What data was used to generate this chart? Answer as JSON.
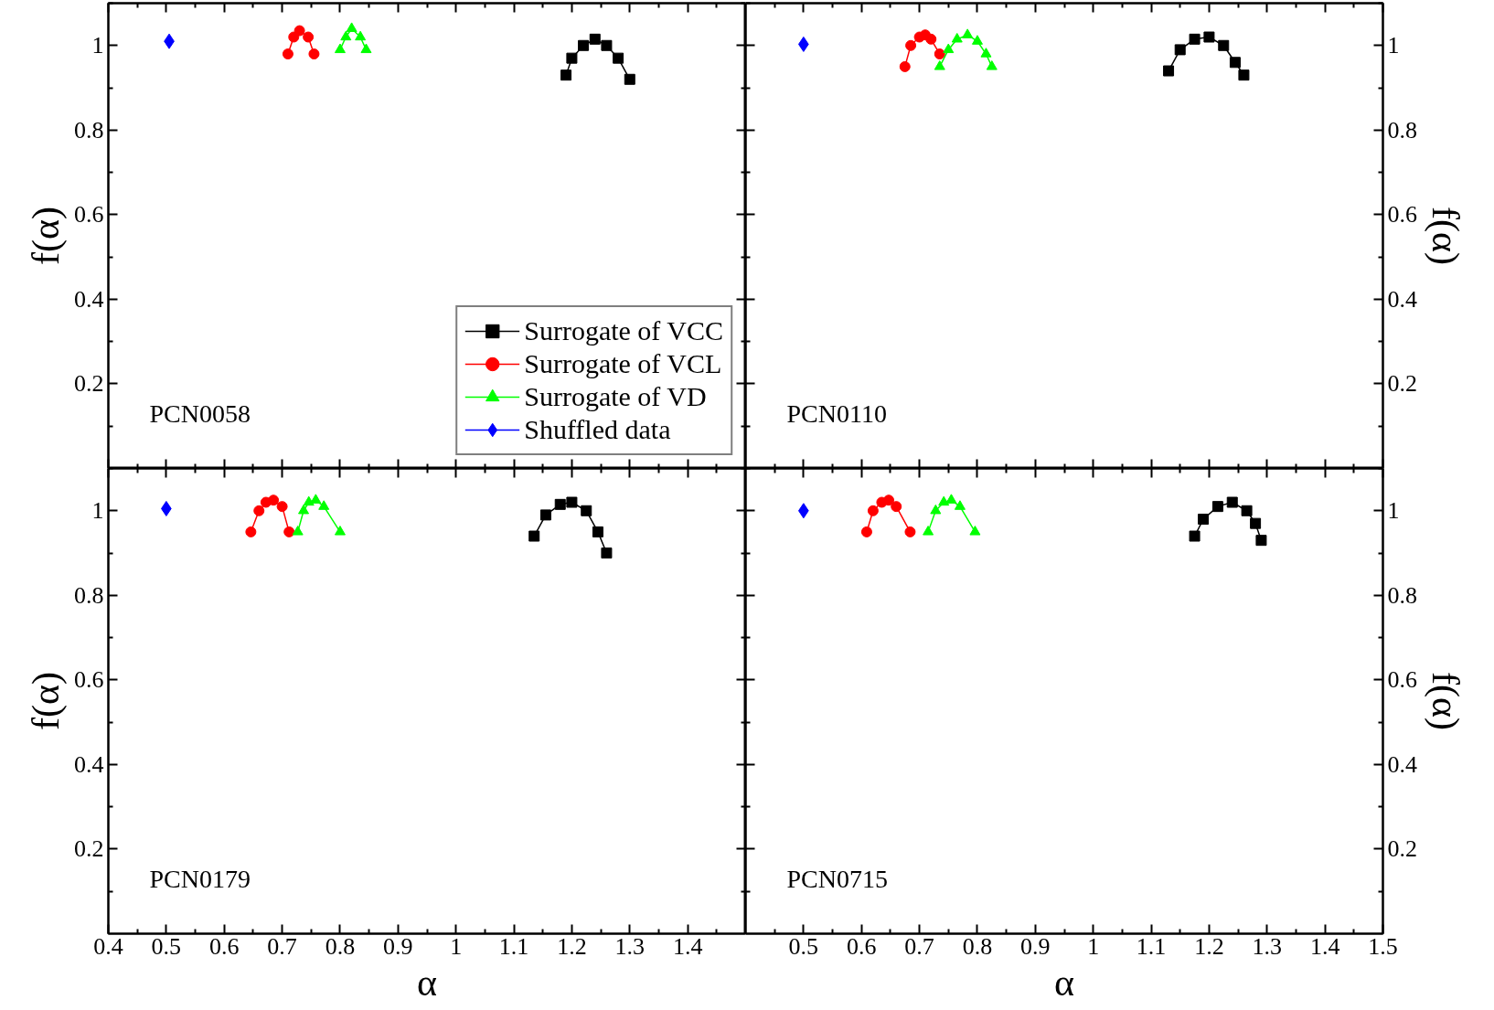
{
  "chart_data": [
    {
      "type": "line",
      "ylabel": "f(α)",
      "xlim": [
        0.4,
        1.5
      ],
      "ylim": [
        0,
        1.1
      ],
      "xticks": [
        0.4,
        0.5,
        0.6,
        0.7,
        0.8,
        0.9,
        1,
        1.1,
        1.2,
        1.3,
        1.4
      ],
      "yticks": [
        0.2,
        0.4,
        0.6,
        0.8,
        1
      ],
      "tick_labels": "y",
      "legend": "bottom right",
      "annotations": [
        "PCN0058"
      ],
      "series": [
        {
          "name": "Surrogate of VCC",
          "color": "#000000",
          "marker": "square",
          "x": [
            1.19,
            1.2,
            1.22,
            1.24,
            1.26,
            1.28,
            1.3
          ],
          "values": [
            0.93,
            0.97,
            1.0,
            1.015,
            1.0,
            0.97,
            0.92
          ]
        },
        {
          "name": "Surrogate of VCL",
          "color": "#ff0000",
          "marker": "circle",
          "x": [
            0.71,
            0.72,
            0.73,
            0.745,
            0.755
          ],
          "values": [
            0.98,
            1.02,
            1.035,
            1.02,
            0.98
          ]
        },
        {
          "name": "Surrogate of VD",
          "color": "#00ff00",
          "marker": "triangle",
          "x": [
            0.8,
            0.81,
            0.82,
            0.835,
            0.845
          ],
          "values": [
            0.99,
            1.02,
            1.04,
            1.02,
            0.99
          ]
        },
        {
          "name": "Shuffled data",
          "color": "#0000ff",
          "marker": "diamond",
          "x": [
            0.505
          ],
          "values": [
            1.01
          ]
        }
      ]
    },
    {
      "type": "line",
      "ylabel": "f(α)",
      "xlim": [
        0.4,
        1.5
      ],
      "ylim": [
        0,
        1.1
      ],
      "xticks": [
        0.5,
        0.6,
        0.7,
        0.8,
        0.9,
        1,
        1.1,
        1.2,
        1.3,
        1.4,
        1.5
      ],
      "yticks": [
        0.2,
        0.4,
        0.6,
        0.8,
        1
      ],
      "tick_labels": "y",
      "annotations": [
        "PCN0110"
      ],
      "series": [
        {
          "color": "#000000",
          "marker": "square",
          "x": [
            1.13,
            1.15,
            1.175,
            1.2,
            1.225,
            1.245,
            1.26
          ],
          "values": [
            0.94,
            0.99,
            1.015,
            1.02,
            1.0,
            0.96,
            0.93
          ]
        },
        {
          "color": "#ff0000",
          "marker": "circle",
          "x": [
            0.675,
            0.685,
            0.7,
            0.71,
            0.72,
            0.735
          ],
          "values": [
            0.95,
            1.0,
            1.02,
            1.025,
            1.015,
            0.98
          ]
        },
        {
          "color": "#00ff00",
          "marker": "triangle",
          "x": [
            0.735,
            0.75,
            0.765,
            0.783,
            0.8,
            0.815,
            0.825
          ],
          "values": [
            0.95,
            0.99,
            1.015,
            1.025,
            1.01,
            0.98,
            0.95
          ]
        },
        {
          "color": "#0000ff",
          "marker": "diamond",
          "x": [
            0.5
          ],
          "values": [
            1.003
          ]
        }
      ]
    },
    {
      "type": "line",
      "xlabel": "α",
      "ylabel": "f(α)",
      "xlim": [
        0.4,
        1.5
      ],
      "ylim": [
        0,
        1.1
      ],
      "xticks": [
        0.4,
        0.5,
        0.6,
        0.7,
        0.8,
        0.9,
        1,
        1.1,
        1.2,
        1.3,
        1.4
      ],
      "yticks": [
        0.2,
        0.4,
        0.6,
        0.8,
        1
      ],
      "annotations": [
        "PCN0179"
      ],
      "series": [
        {
          "color": "#000000",
          "marker": "square",
          "x": [
            1.135,
            1.155,
            1.18,
            1.2,
            1.225,
            1.245,
            1.26
          ],
          "values": [
            0.94,
            0.99,
            1.015,
            1.02,
            1.0,
            0.95,
            0.9
          ]
        },
        {
          "color": "#ff0000",
          "marker": "circle",
          "x": [
            0.646,
            0.66,
            0.672,
            0.685,
            0.7,
            0.712
          ],
          "values": [
            0.95,
            1.0,
            1.02,
            1.025,
            1.01,
            0.95
          ]
        },
        {
          "color": "#00ff00",
          "marker": "triangle",
          "x": [
            0.727,
            0.737,
            0.746,
            0.758,
            0.772,
            0.8
          ],
          "values": [
            0.95,
            1.0,
            1.02,
            1.025,
            1.01,
            0.95
          ]
        },
        {
          "color": "#0000ff",
          "marker": "diamond",
          "x": [
            0.5
          ],
          "values": [
            1.005
          ]
        }
      ]
    },
    {
      "type": "line",
      "xlabel": "α",
      "ylabel": "f(α)",
      "xlim": [
        0.4,
        1.5
      ],
      "ylim": [
        0,
        1.1
      ],
      "xticks": [
        0.5,
        0.6,
        0.7,
        0.8,
        0.9,
        1,
        1.1,
        1.2,
        1.3,
        1.4,
        1.5
      ],
      "yticks": [
        0.2,
        0.4,
        0.6,
        0.8,
        1
      ],
      "annotations": [
        "PCN0715"
      ],
      "series": [
        {
          "color": "#000000",
          "marker": "square",
          "x": [
            1.175,
            1.19,
            1.215,
            1.24,
            1.265,
            1.28,
            1.29
          ],
          "values": [
            0.94,
            0.98,
            1.01,
            1.02,
            1.0,
            0.97,
            0.93
          ]
        },
        {
          "color": "#ff0000",
          "marker": "circle",
          "x": [
            0.609,
            0.62,
            0.635,
            0.647,
            0.66,
            0.684
          ],
          "values": [
            0.95,
            1.0,
            1.02,
            1.025,
            1.01,
            0.95
          ]
        },
        {
          "color": "#00ff00",
          "marker": "triangle",
          "x": [
            0.715,
            0.728,
            0.742,
            0.755,
            0.77,
            0.796
          ],
          "values": [
            0.95,
            1.0,
            1.02,
            1.025,
            1.01,
            0.95
          ]
        },
        {
          "color": "#0000ff",
          "marker": "diamond",
          "x": [
            0.5
          ],
          "values": [
            1.0
          ]
        }
      ]
    }
  ]
}
